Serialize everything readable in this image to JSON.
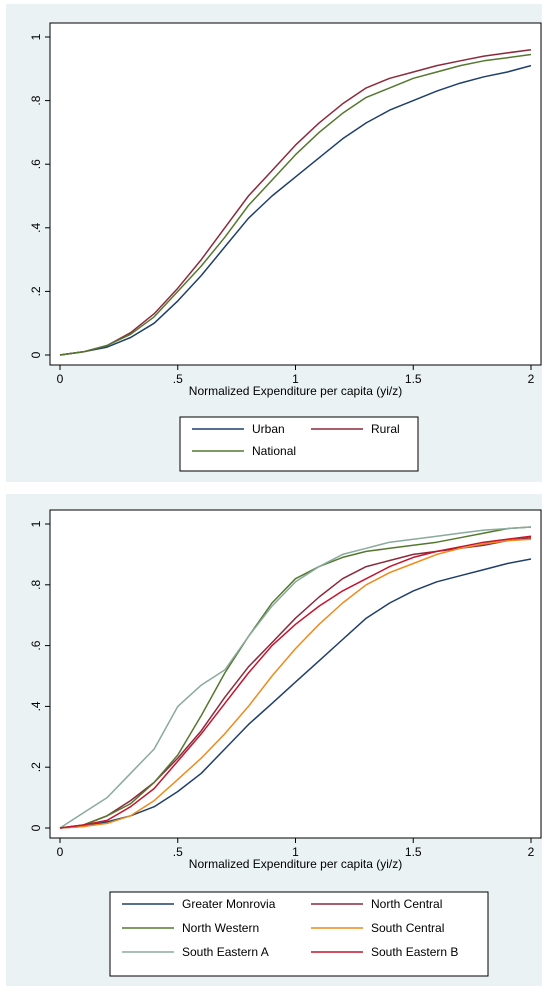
{
  "chart_data": [
    {
      "type": "line",
      "title": "",
      "xlabel": "Normalized Expenditure per capita (yi/z)",
      "ylabel": "",
      "xlim": [
        0,
        2
      ],
      "ylim": [
        0,
        1
      ],
      "xticks": [
        {
          "v": 0,
          "label": "0"
        },
        {
          "v": 0.5,
          "label": ".5"
        },
        {
          "v": 1,
          "label": "1"
        },
        {
          "v": 1.5,
          "label": "1.5"
        },
        {
          "v": 2,
          "label": "2"
        }
      ],
      "yticks": [
        {
          "v": 0,
          "label": "0"
        },
        {
          "v": 0.2,
          "label": ".2"
        },
        {
          "v": 0.4,
          "label": ".4"
        },
        {
          "v": 0.6,
          "label": ".6"
        },
        {
          "v": 0.8,
          "label": ".8"
        },
        {
          "v": 1,
          "label": "1"
        }
      ],
      "grid": false,
      "legend_position": "bottom",
      "legend_columns": 2,
      "x": [
        0,
        0.1,
        0.2,
        0.3,
        0.4,
        0.5,
        0.6,
        0.7,
        0.8,
        0.9,
        1.0,
        1.1,
        1.2,
        1.3,
        1.4,
        1.5,
        1.6,
        1.7,
        1.8,
        1.9,
        2.0
      ],
      "series": [
        {
          "name": "Urban",
          "color": "#1f3f6b",
          "values": [
            0,
            0.01,
            0.025,
            0.055,
            0.1,
            0.17,
            0.25,
            0.34,
            0.43,
            0.5,
            0.56,
            0.62,
            0.68,
            0.73,
            0.77,
            0.8,
            0.83,
            0.855,
            0.875,
            0.89,
            0.91
          ]
        },
        {
          "name": "Rural",
          "color": "#8c2a3c",
          "values": [
            0,
            0.01,
            0.03,
            0.07,
            0.13,
            0.21,
            0.3,
            0.4,
            0.5,
            0.58,
            0.66,
            0.73,
            0.79,
            0.84,
            0.87,
            0.89,
            0.91,
            0.925,
            0.94,
            0.95,
            0.96
          ]
        },
        {
          "name": "National",
          "color": "#55782f",
          "values": [
            0,
            0.01,
            0.03,
            0.065,
            0.12,
            0.2,
            0.28,
            0.37,
            0.47,
            0.55,
            0.63,
            0.7,
            0.76,
            0.81,
            0.84,
            0.87,
            0.89,
            0.91,
            0.925,
            0.935,
            0.945
          ]
        }
      ]
    },
    {
      "type": "line",
      "title": "",
      "xlabel": "Normalized Expenditure per capita (yi/z)",
      "ylabel": "",
      "xlim": [
        0,
        2
      ],
      "ylim": [
        0,
        1
      ],
      "xticks": [
        {
          "v": 0,
          "label": "0"
        },
        {
          "v": 0.5,
          "label": ".5"
        },
        {
          "v": 1,
          "label": "1"
        },
        {
          "v": 1.5,
          "label": "1.5"
        },
        {
          "v": 2,
          "label": "2"
        }
      ],
      "yticks": [
        {
          "v": 0,
          "label": "0"
        },
        {
          "v": 0.2,
          "label": ".2"
        },
        {
          "v": 0.4,
          "label": ".4"
        },
        {
          "v": 0.6,
          "label": ".6"
        },
        {
          "v": 0.8,
          "label": ".8"
        },
        {
          "v": 1,
          "label": "1"
        }
      ],
      "grid": false,
      "legend_position": "bottom",
      "legend_columns": 2,
      "x": [
        0,
        0.1,
        0.2,
        0.3,
        0.4,
        0.5,
        0.6,
        0.7,
        0.8,
        0.9,
        1.0,
        1.1,
        1.2,
        1.3,
        1.4,
        1.5,
        1.6,
        1.7,
        1.8,
        1.9,
        2.0
      ],
      "series": [
        {
          "name": "Greater Monrovia",
          "color": "#1f3f6b",
          "values": [
            0,
            0.005,
            0.02,
            0.04,
            0.07,
            0.12,
            0.18,
            0.26,
            0.34,
            0.41,
            0.48,
            0.55,
            0.62,
            0.69,
            0.74,
            0.78,
            0.81,
            0.83,
            0.85,
            0.87,
            0.885
          ]
        },
        {
          "name": "North Central",
          "color": "#8c2a3c",
          "values": [
            0,
            0.01,
            0.04,
            0.09,
            0.15,
            0.23,
            0.32,
            0.43,
            0.53,
            0.61,
            0.69,
            0.76,
            0.82,
            0.86,
            0.88,
            0.9,
            0.91,
            0.92,
            0.93,
            0.945,
            0.955
          ]
        },
        {
          "name": "North Western",
          "color": "#55782f",
          "values": [
            0,
            0.01,
            0.04,
            0.08,
            0.15,
            0.24,
            0.37,
            0.51,
            0.63,
            0.74,
            0.82,
            0.86,
            0.89,
            0.91,
            0.92,
            0.93,
            0.94,
            0.955,
            0.97,
            0.985,
            0.99
          ]
        },
        {
          "name": "South Central",
          "color": "#f08a1a",
          "values": [
            0,
            0.005,
            0.015,
            0.04,
            0.09,
            0.16,
            0.23,
            0.31,
            0.4,
            0.5,
            0.59,
            0.67,
            0.74,
            0.8,
            0.84,
            0.87,
            0.9,
            0.92,
            0.935,
            0.945,
            0.95
          ]
        },
        {
          "name": "South Eastern A",
          "color": "#8aaa9c",
          "values": [
            0,
            0.05,
            0.1,
            0.18,
            0.26,
            0.4,
            0.47,
            0.52,
            0.63,
            0.73,
            0.81,
            0.86,
            0.9,
            0.92,
            0.94,
            0.95,
            0.96,
            0.97,
            0.98,
            0.985,
            0.99
          ]
        },
        {
          "name": "South Eastern B",
          "color": "#c4142e",
          "values": [
            0,
            0.01,
            0.025,
            0.07,
            0.13,
            0.22,
            0.31,
            0.41,
            0.51,
            0.6,
            0.67,
            0.73,
            0.78,
            0.82,
            0.86,
            0.89,
            0.91,
            0.925,
            0.94,
            0.95,
            0.96
          ]
        }
      ]
    }
  ]
}
